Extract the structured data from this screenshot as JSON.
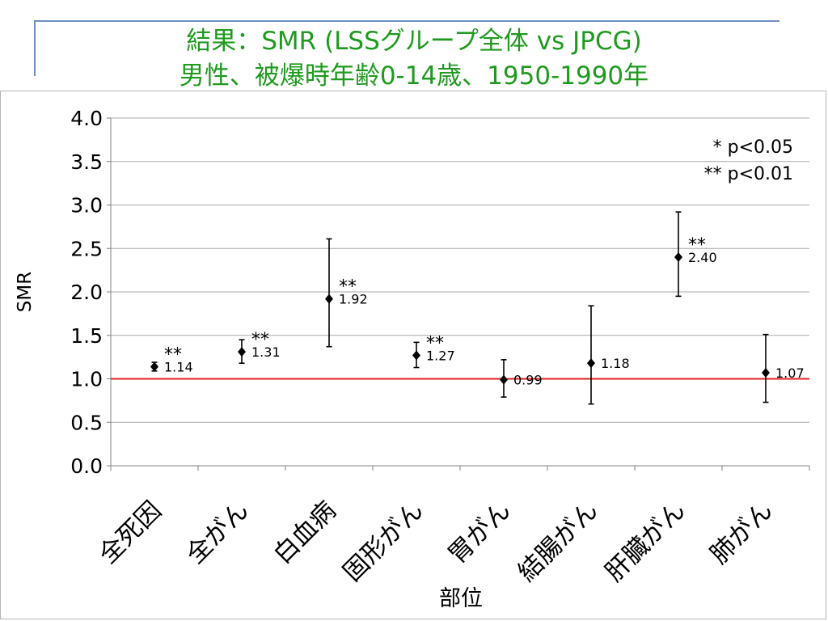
{
  "title": {
    "line1": "結果：SMR (LSSグループ全体 vs JPCG)",
    "line2": "男性、被爆時年齢0-14歳、1950-1990年"
  },
  "chart_data": {
    "type": "scatter",
    "categories": [
      "全死因",
      "全がん",
      "白血病",
      "固形がん",
      "胃がん",
      "結腸がん",
      "肝臓がん",
      "肺がん"
    ],
    "values": [
      1.14,
      1.31,
      1.92,
      1.27,
      0.99,
      1.18,
      2.4,
      1.07
    ],
    "value_labels": [
      "1.14",
      "1.31",
      "1.92",
      "1.27",
      "0.99",
      "1.18",
      "2.40",
      "1.07"
    ],
    "ci_lower": [
      1.09,
      1.18,
      1.37,
      1.13,
      0.79,
      0.71,
      1.95,
      0.73
    ],
    "ci_upper": [
      1.19,
      1.45,
      2.61,
      1.42,
      1.22,
      1.84,
      2.92,
      1.51
    ],
    "significance": [
      "**",
      "**",
      "**",
      "**",
      "",
      "",
      "**",
      ""
    ],
    "xlabel": "部位",
    "ylabel": "SMR",
    "ylim": [
      0,
      4
    ],
    "yticks": [
      "0.0",
      "0.5",
      "1.0",
      "1.5",
      "2.0",
      "2.5",
      "3.0",
      "3.5",
      "4.0"
    ],
    "reference_line": 1.0,
    "reference_color": "#e02020",
    "grid": true,
    "legend": [
      "* p<0.05",
      "** p<0.01"
    ],
    "legend_position": "top-right",
    "marker_color": "#000000"
  }
}
